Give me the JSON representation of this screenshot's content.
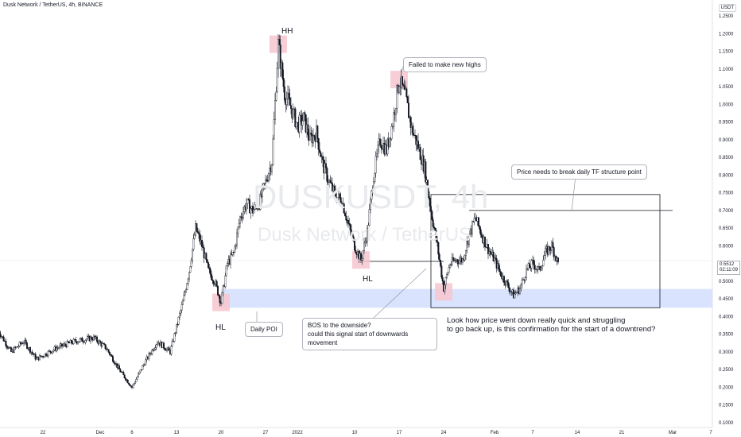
{
  "header": {
    "title": "Dusk Network / TetherUS, 4h, BINANCE",
    "currency": "USDT"
  },
  "watermark": {
    "line1": "DUSKUSDT, 4h",
    "line2": "Dusk Network / TetherUS"
  },
  "labels": {
    "hh": "HH",
    "hl_left": "HL",
    "hl_mid": "HL"
  },
  "annotations": {
    "failed": "Failed to make new highs",
    "structure": "Price needs to break daily TF structure point",
    "daily_poi": "Daily POI",
    "bos_line1": "BOS to the downside?",
    "bos_line2": "could this signal start of downwards movement",
    "conclusion_line1": "Look how price went down really quick and struggling",
    "conclusion_line2": "to go back up, is this confirmation for the start of a downtrend?"
  },
  "price_tag": {
    "price": "0.5512",
    "countdown": "02:11:09"
  },
  "colors": {
    "up": "#131722",
    "down": "#131722",
    "poi_zone": "#cfdcfc",
    "highlight": "#f7c6cf",
    "crosshair": "#f0f0f0"
  },
  "chart_data": {
    "type": "candlestick",
    "title": "Dusk Network / TetherUS, 4h, BINANCE",
    "ylim": [
      0.08,
      1.27
    ],
    "y_ticks": [
      "1.2500",
      "1.2000",
      "1.1500",
      "1.1000",
      "1.0500",
      "1.0000",
      "0.9500",
      "0.9000",
      "0.8500",
      "0.8000",
      "0.7500",
      "0.7000",
      "0.6500",
      "0.6000",
      "0.5500",
      "0.5000",
      "0.4500",
      "0.4000",
      "0.3500",
      "0.3000",
      "0.2500",
      "0.2000",
      "0.1500",
      "0.1000"
    ],
    "x_ticks": [
      {
        "label": "22",
        "date": "2021-11-22"
      },
      {
        "label": "Dec",
        "date": "2021-12-01"
      },
      {
        "label": "6",
        "date": "2021-12-06"
      },
      {
        "label": "13",
        "date": "2021-12-13"
      },
      {
        "label": "20",
        "date": "2021-12-20"
      },
      {
        "label": "27",
        "date": "2021-12-27"
      },
      {
        "label": "2022",
        "date": "2022-01-01"
      },
      {
        "label": "10",
        "date": "2022-01-10"
      },
      {
        "label": "17",
        "date": "2022-01-17"
      },
      {
        "label": "24",
        "date": "2022-01-24"
      },
      {
        "label": "Feb",
        "date": "2022-02-01"
      },
      {
        "label": "7",
        "date": "2022-02-07"
      },
      {
        "label": "14",
        "date": "2022-02-14"
      },
      {
        "label": "21",
        "date": "2022-02-21"
      },
      {
        "label": "Mar",
        "date": "2022-03-01"
      },
      {
        "label": "7",
        "date": "2022-03-07"
      }
    ],
    "price_path": [
      [
        "2021-11-15",
        0.36
      ],
      [
        "2021-11-17",
        0.3
      ],
      [
        "2021-11-19",
        0.33
      ],
      [
        "2021-11-21",
        0.28
      ],
      [
        "2021-11-24",
        0.31
      ],
      [
        "2021-11-27",
        0.33
      ],
      [
        "2021-11-30",
        0.34
      ],
      [
        "2021-12-02",
        0.31
      ],
      [
        "2021-12-04",
        0.25
      ],
      [
        "2021-12-06",
        0.2
      ],
      [
        "2021-12-08",
        0.27
      ],
      [
        "2021-12-10",
        0.33
      ],
      [
        "2021-12-12",
        0.3
      ],
      [
        "2021-12-14",
        0.44
      ],
      [
        "2021-12-15",
        0.53
      ],
      [
        "2021-12-16",
        0.65
      ],
      [
        "2021-12-17",
        0.6
      ],
      [
        "2021-12-18",
        0.53
      ],
      [
        "2021-12-19",
        0.5
      ],
      [
        "2021-12-20",
        0.44
      ],
      [
        "2021-12-21",
        0.55
      ],
      [
        "2021-12-22",
        0.58
      ],
      [
        "2021-12-23",
        0.68
      ],
      [
        "2021-12-24",
        0.72
      ],
      [
        "2021-12-25",
        0.7
      ],
      [
        "2021-12-26",
        0.72
      ],
      [
        "2021-12-27",
        0.78
      ],
      [
        "2021-12-28",
        0.84
      ],
      [
        "2021-12-29",
        1.17
      ],
      [
        "2021-12-30",
        1.03
      ],
      [
        "2021-12-31",
        0.99
      ],
      [
        "2022-01-01",
        0.94
      ],
      [
        "2022-01-02",
        0.96
      ],
      [
        "2022-01-03",
        0.9
      ],
      [
        "2022-01-04",
        0.92
      ],
      [
        "2022-01-05",
        0.83
      ],
      [
        "2022-01-06",
        0.78
      ],
      [
        "2022-01-07",
        0.74
      ],
      [
        "2022-01-08",
        0.73
      ],
      [
        "2022-01-09",
        0.66
      ],
      [
        "2022-01-10",
        0.6
      ],
      [
        "2022-01-11",
        0.56
      ],
      [
        "2022-01-12",
        0.64
      ],
      [
        "2022-01-13",
        0.8
      ],
      [
        "2022-01-14",
        0.9
      ],
      [
        "2022-01-15",
        0.87
      ],
      [
        "2022-01-16",
        0.95
      ],
      [
        "2022-01-17",
        1.07
      ],
      [
        "2022-01-18",
        1.02
      ],
      [
        "2022-01-19",
        0.93
      ],
      [
        "2022-01-20",
        0.88
      ],
      [
        "2022-01-21",
        0.82
      ],
      [
        "2022-01-22",
        0.7
      ],
      [
        "2022-01-23",
        0.6
      ],
      [
        "2022-01-24",
        0.48
      ],
      [
        "2022-01-25",
        0.55
      ],
      [
        "2022-01-26",
        0.56
      ],
      [
        "2022-01-27",
        0.56
      ],
      [
        "2022-01-28",
        0.63
      ],
      [
        "2022-01-29",
        0.68
      ],
      [
        "2022-01-30",
        0.63
      ],
      [
        "2022-01-31",
        0.59
      ],
      [
        "2022-02-01",
        0.56
      ],
      [
        "2022-02-02",
        0.52
      ],
      [
        "2022-02-03",
        0.49
      ],
      [
        "2022-02-04",
        0.46
      ],
      [
        "2022-02-05",
        0.48
      ],
      [
        "2022-02-06",
        0.53
      ],
      [
        "2022-02-07",
        0.55
      ],
      [
        "2022-02-08",
        0.53
      ],
      [
        "2022-02-09",
        0.58
      ],
      [
        "2022-02-10",
        0.6
      ],
      [
        "2022-02-11",
        0.55
      ]
    ],
    "zones": {
      "daily_poi": [
        0.425,
        0.478
      ],
      "hh_high": 1.17,
      "failed_high": 1.07,
      "bos_level": 0.556,
      "structure_level": 0.7,
      "box": [
        0.425,
        0.745
      ]
    }
  }
}
